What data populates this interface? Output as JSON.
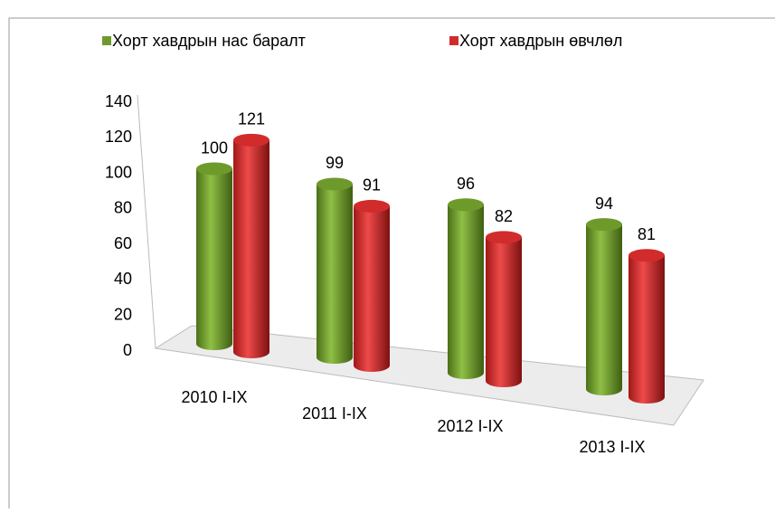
{
  "chart_data": {
    "type": "bar3d",
    "categories": [
      "2010 I-IX",
      "2011 I-IX",
      "2012 I-IX",
      "2013 I-IX"
    ],
    "series": [
      {
        "name": "Хорт хавдрын нас баралт",
        "color": "#6e9a2c",
        "values": [
          100,
          99,
          96,
          94
        ]
      },
      {
        "name": "Хорт хавдрын өвчлөл",
        "color": "#d22b2b",
        "values": [
          121,
          91,
          82,
          81
        ]
      }
    ],
    "ylim": [
      0,
      140
    ],
    "yticks": [
      0,
      20,
      40,
      60,
      80,
      100,
      120,
      140
    ],
    "legend": "top"
  }
}
